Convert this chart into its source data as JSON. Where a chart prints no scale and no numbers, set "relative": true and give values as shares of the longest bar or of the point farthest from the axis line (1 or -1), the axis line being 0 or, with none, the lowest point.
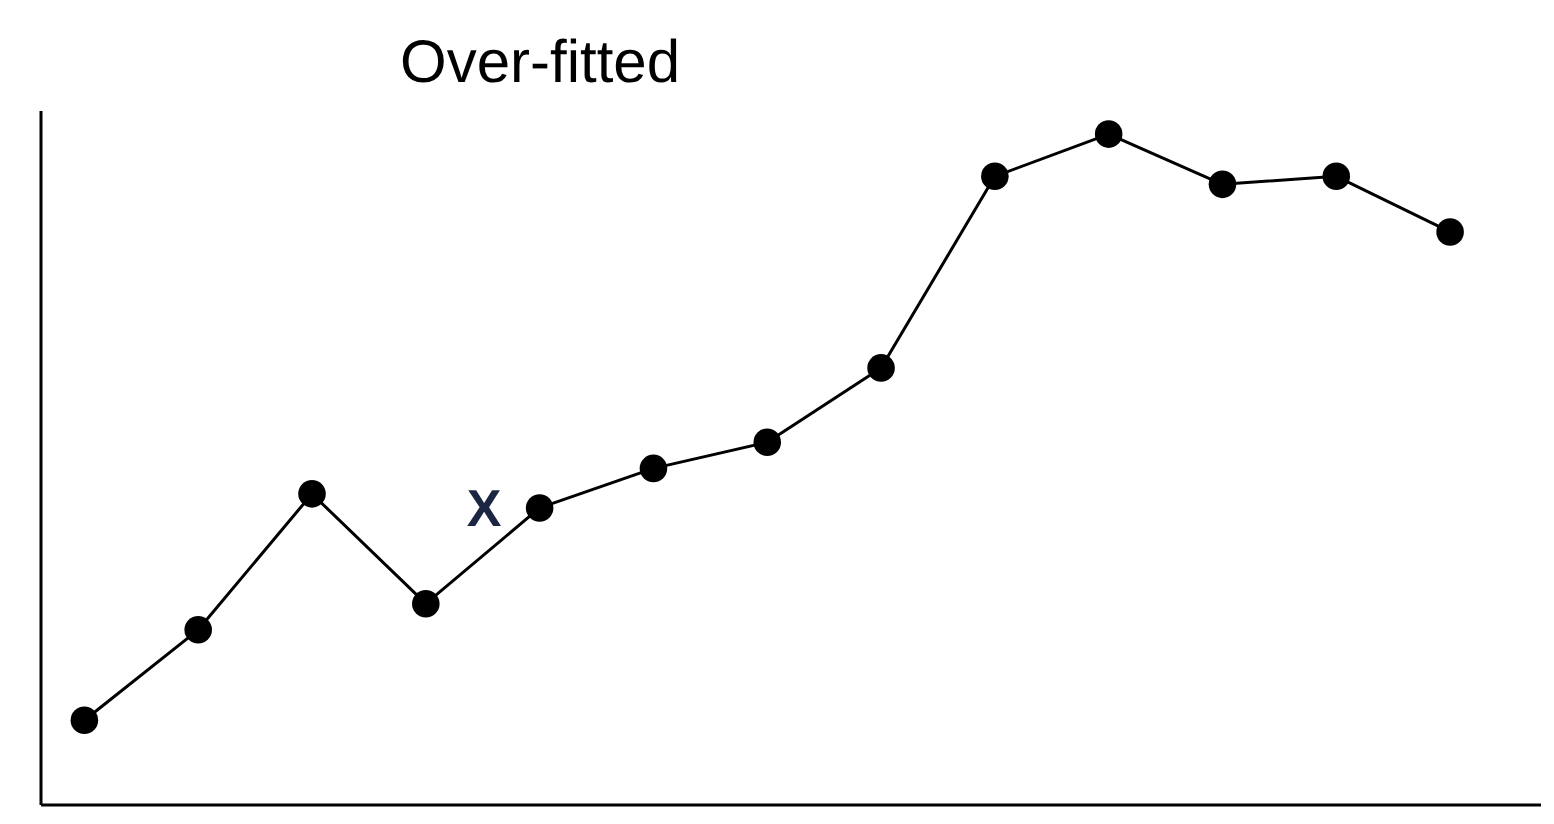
{
  "chart_data": {
    "type": "line",
    "title": "Over-fitted",
    "relative": true,
    "marker": "circle",
    "line_style": "solid",
    "categories": [
      null,
      null,
      null,
      null,
      null,
      null,
      null,
      null,
      null,
      null,
      null,
      null,
      null
    ],
    "series": [
      {
        "color": "#000000",
        "values": [
          0.125,
          0.26,
          0.463,
          0.299,
          0.442,
          0.501,
          0.54,
          0.651,
          0.937,
          1,
          0.925,
          0.937,
          0.854
        ]
      }
    ],
    "annotations": [
      "X"
    ]
  }
}
